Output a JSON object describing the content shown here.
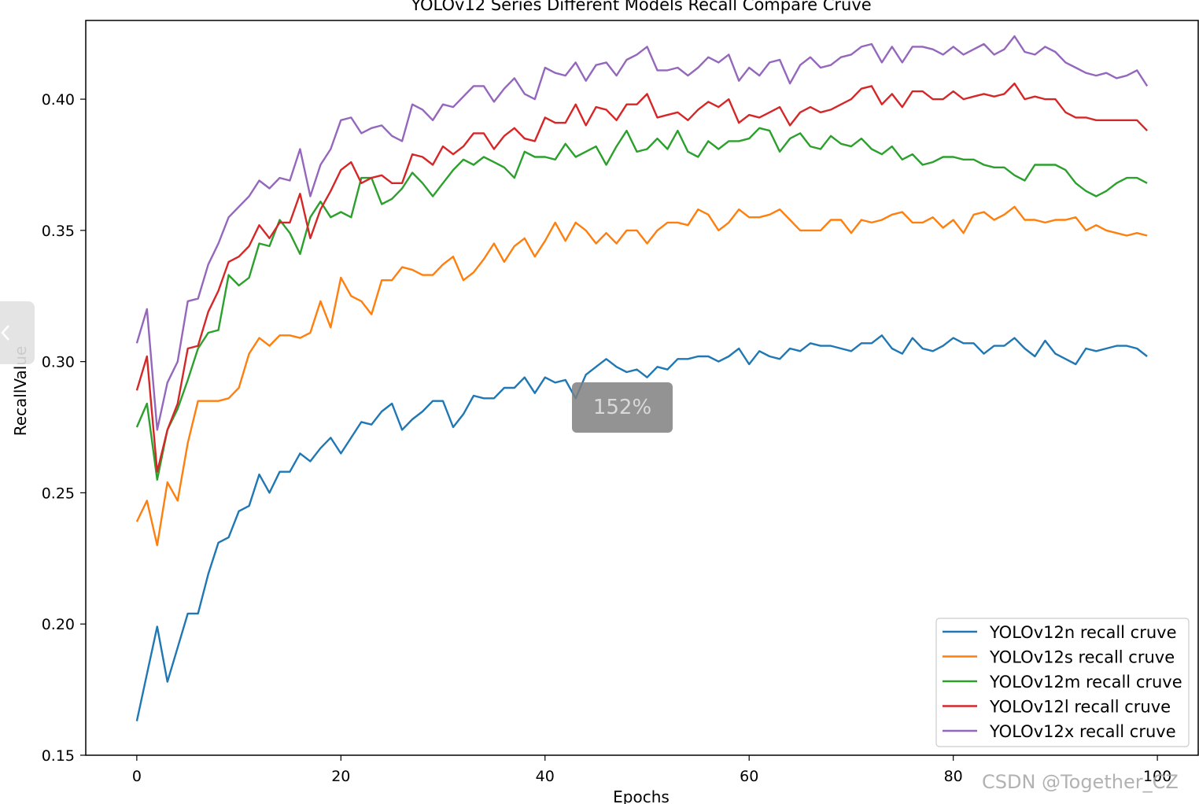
{
  "overlay": {
    "zoom_label": "152%",
    "watermark": "CSDN @Together_CZ",
    "side_tab_icon": "chevron-left-icon"
  },
  "chart_data": {
    "type": "line",
    "title": "YOLOv12 Series Different Models Recall Compare Cruve",
    "xlabel": "Epochs",
    "ylabel": "RecallValue",
    "xlim": [
      -5,
      104
    ],
    "ylim": [
      0.15,
      0.43
    ],
    "xticks": [
      0,
      20,
      40,
      60,
      80,
      100
    ],
    "xtick_labels": [
      "0",
      "20",
      "40",
      "60",
      "80",
      "100"
    ],
    "yticks": [
      0.15,
      0.2,
      0.25,
      0.3,
      0.35,
      0.4
    ],
    "ytick_labels": [
      "0.15",
      "0.20",
      "0.25",
      "0.30",
      "0.35",
      "0.40"
    ],
    "grid": false,
    "legend_position": "lower-right",
    "x": [
      0,
      1,
      2,
      3,
      4,
      5,
      6,
      7,
      8,
      9,
      10,
      11,
      12,
      13,
      14,
      15,
      16,
      17,
      18,
      19,
      20,
      21,
      22,
      23,
      24,
      25,
      26,
      27,
      28,
      29,
      30,
      31,
      32,
      33,
      34,
      35,
      36,
      37,
      38,
      39,
      40,
      41,
      42,
      43,
      44,
      45,
      46,
      47,
      48,
      49,
      50,
      51,
      52,
      53,
      54,
      55,
      56,
      57,
      58,
      59,
      60,
      61,
      62,
      63,
      64,
      65,
      66,
      67,
      68,
      69,
      70,
      71,
      72,
      73,
      74,
      75,
      76,
      77,
      78,
      79,
      80,
      81,
      82,
      83,
      84,
      85,
      86,
      87,
      88,
      89,
      90,
      91,
      92,
      93,
      94,
      95,
      96,
      97,
      98,
      99
    ],
    "series": [
      {
        "name": "YOLOv12n recall cruve",
        "color": "#1f77b4",
        "values": [
          0.163,
          0.181,
          0.199,
          0.178,
          0.191,
          0.204,
          0.204,
          0.219,
          0.231,
          0.233,
          0.243,
          0.245,
          0.257,
          0.25,
          0.258,
          0.258,
          0.265,
          0.262,
          0.267,
          0.271,
          0.265,
          0.271,
          0.277,
          0.276,
          0.281,
          0.284,
          0.274,
          0.278,
          0.281,
          0.285,
          0.285,
          0.275,
          0.28,
          0.287,
          0.286,
          0.286,
          0.29,
          0.29,
          0.294,
          0.288,
          0.294,
          0.292,
          0.293,
          0.286,
          0.295,
          0.298,
          0.301,
          0.298,
          0.296,
          0.297,
          0.294,
          0.298,
          0.297,
          0.301,
          0.301,
          0.302,
          0.302,
          0.3,
          0.302,
          0.305,
          0.299,
          0.304,
          0.302,
          0.301,
          0.305,
          0.304,
          0.307,
          0.306,
          0.306,
          0.305,
          0.304,
          0.307,
          0.307,
          0.31,
          0.305,
          0.303,
          0.309,
          0.305,
          0.304,
          0.306,
          0.309,
          0.307,
          0.307,
          0.303,
          0.306,
          0.306,
          0.309,
          0.305,
          0.302,
          0.308,
          0.303,
          0.301,
          0.299,
          0.305,
          0.304,
          0.305,
          0.306,
          0.306,
          0.305,
          0.302
        ]
      },
      {
        "name": "YOLOv12s recall cruve",
        "color": "#ff7f0e",
        "values": [
          0.239,
          0.247,
          0.23,
          0.254,
          0.247,
          0.269,
          0.285,
          0.285,
          0.285,
          0.286,
          0.29,
          0.303,
          0.309,
          0.306,
          0.31,
          0.31,
          0.309,
          0.311,
          0.323,
          0.313,
          0.332,
          0.325,
          0.323,
          0.318,
          0.331,
          0.331,
          0.336,
          0.335,
          0.333,
          0.333,
          0.337,
          0.34,
          0.331,
          0.334,
          0.339,
          0.345,
          0.338,
          0.344,
          0.347,
          0.34,
          0.346,
          0.353,
          0.346,
          0.353,
          0.35,
          0.345,
          0.349,
          0.345,
          0.35,
          0.35,
          0.345,
          0.35,
          0.353,
          0.353,
          0.352,
          0.358,
          0.356,
          0.35,
          0.353,
          0.358,
          0.355,
          0.355,
          0.356,
          0.358,
          0.354,
          0.35,
          0.35,
          0.35,
          0.354,
          0.354,
          0.349,
          0.354,
          0.353,
          0.354,
          0.356,
          0.357,
          0.353,
          0.353,
          0.355,
          0.351,
          0.354,
          0.349,
          0.356,
          0.357,
          0.354,
          0.356,
          0.359,
          0.354,
          0.354,
          0.353,
          0.354,
          0.354,
          0.355,
          0.35,
          0.352,
          0.35,
          0.349,
          0.348,
          0.349,
          0.348
        ]
      },
      {
        "name": "YOLOv12m recall cruve",
        "color": "#2ca02c",
        "values": [
          0.275,
          0.284,
          0.255,
          0.274,
          0.282,
          0.293,
          0.305,
          0.311,
          0.312,
          0.333,
          0.329,
          0.332,
          0.345,
          0.344,
          0.354,
          0.349,
          0.341,
          0.355,
          0.361,
          0.355,
          0.357,
          0.355,
          0.37,
          0.37,
          0.36,
          0.362,
          0.366,
          0.372,
          0.368,
          0.363,
          0.368,
          0.373,
          0.377,
          0.375,
          0.378,
          0.376,
          0.374,
          0.37,
          0.38,
          0.378,
          0.378,
          0.377,
          0.383,
          0.378,
          0.38,
          0.382,
          0.375,
          0.382,
          0.388,
          0.38,
          0.381,
          0.385,
          0.381,
          0.388,
          0.38,
          0.378,
          0.384,
          0.381,
          0.384,
          0.384,
          0.385,
          0.389,
          0.388,
          0.38,
          0.385,
          0.387,
          0.382,
          0.381,
          0.386,
          0.383,
          0.382,
          0.385,
          0.381,
          0.379,
          0.382,
          0.377,
          0.379,
          0.375,
          0.376,
          0.378,
          0.378,
          0.377,
          0.377,
          0.375,
          0.374,
          0.374,
          0.371,
          0.369,
          0.375,
          0.375,
          0.375,
          0.373,
          0.368,
          0.365,
          0.363,
          0.365,
          0.368,
          0.37,
          0.37,
          0.368
        ]
      },
      {
        "name": "YOLOv12l recall cruve",
        "color": "#d62728",
        "values": [
          0.289,
          0.302,
          0.258,
          0.274,
          0.284,
          0.305,
          0.306,
          0.319,
          0.327,
          0.338,
          0.34,
          0.344,
          0.352,
          0.347,
          0.353,
          0.353,
          0.364,
          0.347,
          0.358,
          0.365,
          0.373,
          0.376,
          0.368,
          0.37,
          0.371,
          0.368,
          0.368,
          0.379,
          0.378,
          0.375,
          0.382,
          0.379,
          0.382,
          0.387,
          0.387,
          0.381,
          0.386,
          0.389,
          0.385,
          0.384,
          0.393,
          0.391,
          0.391,
          0.398,
          0.39,
          0.397,
          0.396,
          0.392,
          0.398,
          0.398,
          0.402,
          0.393,
          0.394,
          0.395,
          0.392,
          0.396,
          0.399,
          0.397,
          0.4,
          0.391,
          0.394,
          0.393,
          0.395,
          0.397,
          0.39,
          0.395,
          0.397,
          0.395,
          0.396,
          0.398,
          0.4,
          0.404,
          0.405,
          0.398,
          0.402,
          0.397,
          0.403,
          0.403,
          0.4,
          0.4,
          0.403,
          0.4,
          0.401,
          0.402,
          0.401,
          0.402,
          0.406,
          0.4,
          0.401,
          0.4,
          0.4,
          0.395,
          0.393,
          0.393,
          0.392,
          0.392,
          0.392,
          0.392,
          0.392,
          0.388
        ]
      },
      {
        "name": "YOLOv12x recall cruve",
        "color": "#9467bd",
        "values": [
          0.307,
          0.32,
          0.274,
          0.292,
          0.3,
          0.323,
          0.324,
          0.337,
          0.345,
          0.355,
          0.359,
          0.363,
          0.369,
          0.366,
          0.37,
          0.369,
          0.381,
          0.363,
          0.375,
          0.381,
          0.392,
          0.393,
          0.387,
          0.389,
          0.39,
          0.386,
          0.384,
          0.398,
          0.396,
          0.392,
          0.398,
          0.397,
          0.401,
          0.405,
          0.405,
          0.399,
          0.404,
          0.408,
          0.402,
          0.4,
          0.412,
          0.41,
          0.409,
          0.414,
          0.407,
          0.413,
          0.414,
          0.409,
          0.415,
          0.417,
          0.42,
          0.411,
          0.411,
          0.412,
          0.409,
          0.412,
          0.416,
          0.414,
          0.417,
          0.407,
          0.412,
          0.409,
          0.414,
          0.415,
          0.406,
          0.413,
          0.416,
          0.412,
          0.413,
          0.416,
          0.417,
          0.42,
          0.421,
          0.414,
          0.42,
          0.414,
          0.42,
          0.42,
          0.419,
          0.417,
          0.42,
          0.417,
          0.419,
          0.421,
          0.417,
          0.419,
          0.424,
          0.418,
          0.417,
          0.42,
          0.418,
          0.414,
          0.412,
          0.41,
          0.409,
          0.41,
          0.408,
          0.409,
          0.411,
          0.405
        ]
      }
    ]
  }
}
